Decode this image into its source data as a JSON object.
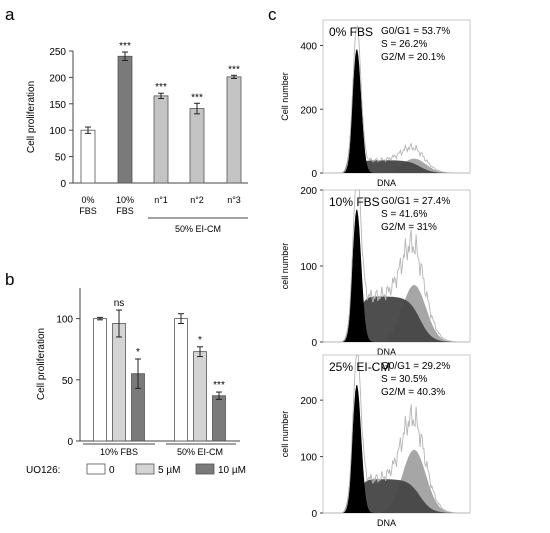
{
  "panels": {
    "a": "a",
    "b": "b",
    "c": "c"
  },
  "chart_data": [
    {
      "panel": "a",
      "type": "bar",
      "ylabel": "Cell proliferation",
      "ylim": [
        0,
        250
      ],
      "yticks": [
        0,
        50,
        100,
        150,
        200,
        250
      ],
      "categories": [
        [
          "0%",
          "FBS"
        ],
        [
          "10%",
          "FBS"
        ],
        [
          "n°1"
        ],
        [
          "n°2"
        ],
        [
          "n°3"
        ]
      ],
      "group_label": "50% EI-CM",
      "values": [
        100,
        240,
        165,
        141,
        201
      ],
      "errors": [
        6,
        8,
        5,
        10,
        3
      ],
      "significance": [
        "",
        "***",
        "***",
        "***",
        "***"
      ],
      "colors": [
        "#ffffff",
        "#7a7a7a",
        "#c4c4c4",
        "#c4c4c4",
        "#c4c4c4"
      ]
    },
    {
      "panel": "b",
      "type": "bar",
      "ylabel": "Cell proliferation",
      "ylim": [
        0,
        125
      ],
      "yticks": [
        0,
        50,
        100
      ],
      "categories": [
        "10% FBS",
        "50% EI-CM"
      ],
      "series": [
        {
          "name": "0",
          "color": "#ffffff",
          "values": [
            100,
            100
          ],
          "errors": [
            1,
            4
          ],
          "significance": [
            "",
            ""
          ]
        },
        {
          "name": "5 µM",
          "color": "#d4d4d4",
          "values": [
            96,
            73
          ],
          "errors": [
            11,
            4
          ],
          "significance": [
            "ns",
            "*"
          ]
        },
        {
          "name": "10 µM",
          "color": "#7a7a7a",
          "values": [
            55,
            37
          ],
          "errors": [
            12,
            3
          ],
          "significance": [
            "*",
            "***"
          ]
        }
      ],
      "legend_title": "UO126:",
      "legend_position": "bottom"
    },
    {
      "panel": "c",
      "type": "area",
      "subplots": [
        {
          "label": "0% FBS",
          "ylabel": "Cell number",
          "xlabel": "DNA",
          "ylim": [
            0,
            480
          ],
          "yticks": [
            0,
            200,
            400
          ],
          "stats": [
            "G0/G1 = 53.7%",
            "S = 26.2%",
            "G2/M = 20.1%"
          ],
          "g1_peak": 390,
          "s_level": 40,
          "g2_peak": 45
        },
        {
          "label": "10% FBS",
          "ylabel": "cell number",
          "xlabel": "DNA",
          "ylim": [
            0,
            200
          ],
          "yticks": [
            0,
            100,
            200
          ],
          "stats": [
            "G0/G1 = 27.4%",
            "S = 41.6%",
            "G2/M = 31%"
          ],
          "g1_peak": 175,
          "s_level": 60,
          "g2_peak": 75
        },
        {
          "label": "25%  EI-CM",
          "ylabel": "cell number",
          "xlabel": "DNA",
          "ylim": [
            0,
            280
          ],
          "yticks": [
            0,
            100,
            200
          ],
          "stats": [
            "G0/G1 = 29.2%",
            "S = 30.5%",
            "G2/M = 40.3%"
          ],
          "g1_peak": 228,
          "s_level": 60,
          "g2_peak": 112
        }
      ]
    }
  ]
}
